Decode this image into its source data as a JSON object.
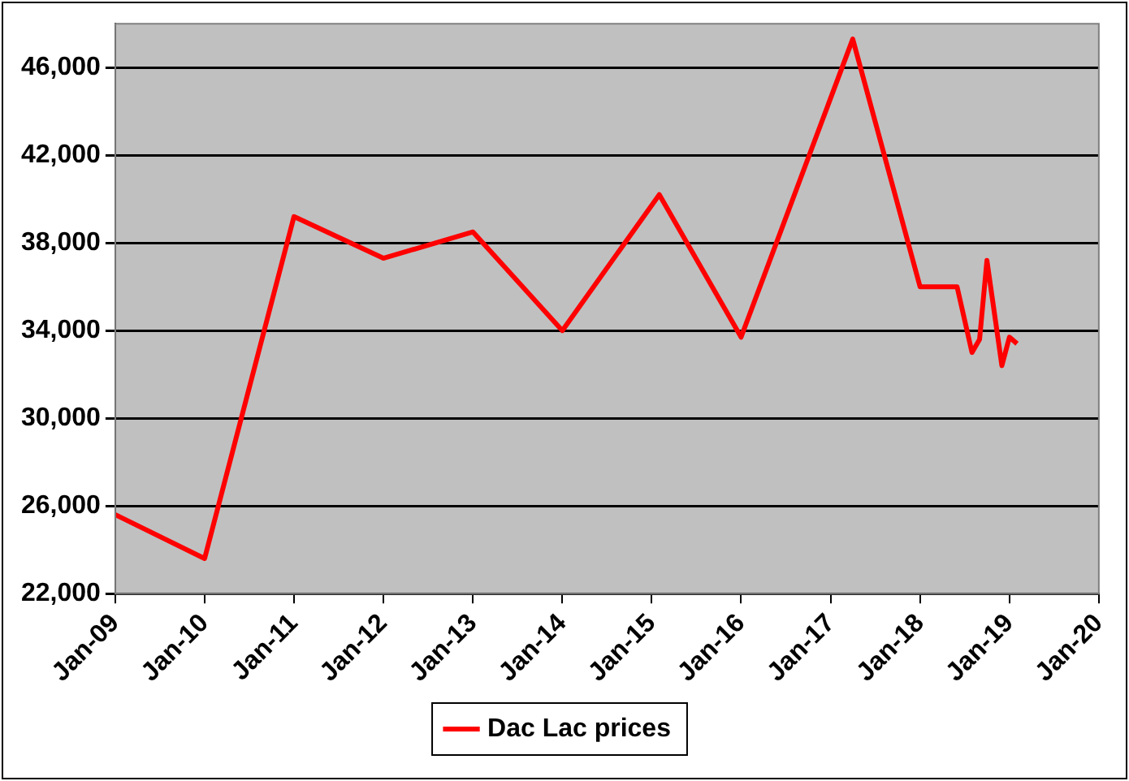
{
  "chart_data": {
    "type": "line",
    "x": [
      "2009-01",
      "2010-01",
      "2011-01",
      "2012-01",
      "2013-01",
      "2014-01",
      "2015-02",
      "2016-01",
      "2017-04",
      "2018-01",
      "2018-06",
      "2018-08",
      "2018-09",
      "2018-10",
      "2018-12",
      "2019-01",
      "2019-02"
    ],
    "series": [
      {
        "name": "Dac Lac prices",
        "color": "#ff0000",
        "values": [
          25600,
          23600,
          39200,
          37300,
          38500,
          34000,
          40200,
          33700,
          47300,
          36000,
          36000,
          33000,
          33600,
          37200,
          32400,
          33700,
          33400
        ]
      }
    ],
    "xlim": [
      "2009-01",
      "2020-01"
    ],
    "xticks": [
      {
        "value": "2009-01",
        "label": "Jan-09"
      },
      {
        "value": "2010-01",
        "label": "Jan-10"
      },
      {
        "value": "2011-01",
        "label": "Jan-11"
      },
      {
        "value": "2012-01",
        "label": "Jan-12"
      },
      {
        "value": "2013-01",
        "label": "Jan-13"
      },
      {
        "value": "2014-01",
        "label": "Jan-14"
      },
      {
        "value": "2015-01",
        "label": "Jan-15"
      },
      {
        "value": "2016-01",
        "label": "Jan-16"
      },
      {
        "value": "2017-01",
        "label": "Jan-17"
      },
      {
        "value": "2018-01",
        "label": "Jan-18"
      },
      {
        "value": "2019-01",
        "label": "Jan-19"
      },
      {
        "value": "2020-01",
        "label": "Jan-20"
      }
    ],
    "ylim": [
      22000,
      48000
    ],
    "yticks": [
      {
        "value": 22000,
        "label": "22,000"
      },
      {
        "value": 26000,
        "label": "26,000"
      },
      {
        "value": 30000,
        "label": "30,000"
      },
      {
        "value": 34000,
        "label": "34,000"
      },
      {
        "value": 38000,
        "label": "38,000"
      },
      {
        "value": 42000,
        "label": "42,000"
      },
      {
        "value": 46000,
        "label": "46,000"
      }
    ],
    "grid": "y",
    "legend": "bottom",
    "marker": "none",
    "line_style": "solid"
  }
}
